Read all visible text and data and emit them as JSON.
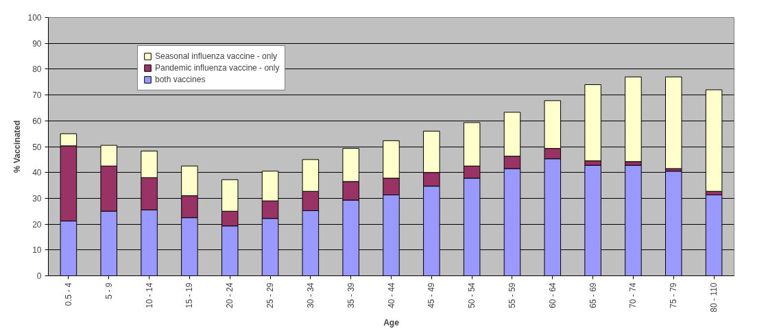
{
  "chart_data": {
    "type": "bar",
    "stacked": true,
    "xlabel": "Age",
    "ylabel": "% Vaccinated",
    "categories": [
      "0.5 - 4",
      "5 - 9",
      "10 - 14",
      "15 - 19",
      "20 - 24",
      "25 - 29",
      "30 - 34",
      "35 - 39",
      "40 - 44",
      "45 - 49",
      "50 - 54",
      "55 - 59",
      "60 - 64",
      "65 - 69",
      "70 - 74",
      "75 - 79",
      "80 - 110"
    ],
    "series": [
      {
        "name": "both vaccines",
        "color": "#9999ff",
        "values": [
          21.2,
          25,
          25.5,
          22.5,
          19.3,
          22.2,
          25.2,
          29.3,
          31.3,
          34.7,
          37.8,
          41.5,
          45.3,
          42.8,
          42.8,
          40.5,
          31.3
        ]
      },
      {
        "name": "Pandemic influenza vaccine - only",
        "color": "#993366",
        "values": [
          29.1,
          17.5,
          12.5,
          8.5,
          5.7,
          6.8,
          7.5,
          7.2,
          6.5,
          5.3,
          4.7,
          4.8,
          4,
          1.7,
          1.4,
          1,
          1.4
        ]
      },
      {
        "name": "Seasonal influenza vaccine - only",
        "color": "#ffffcc",
        "values": [
          4.7,
          8,
          10.3,
          11.5,
          12.2,
          11.5,
          12.3,
          12.8,
          14.5,
          16,
          16.8,
          17,
          18.5,
          29.5,
          32.8,
          35.5,
          39.3
        ]
      }
    ],
    "ylim": [
      0,
      100
    ],
    "yticks": [
      0,
      10,
      20,
      30,
      40,
      50,
      60,
      70,
      80,
      90,
      100
    ],
    "grid": "y",
    "legend": "top left"
  }
}
